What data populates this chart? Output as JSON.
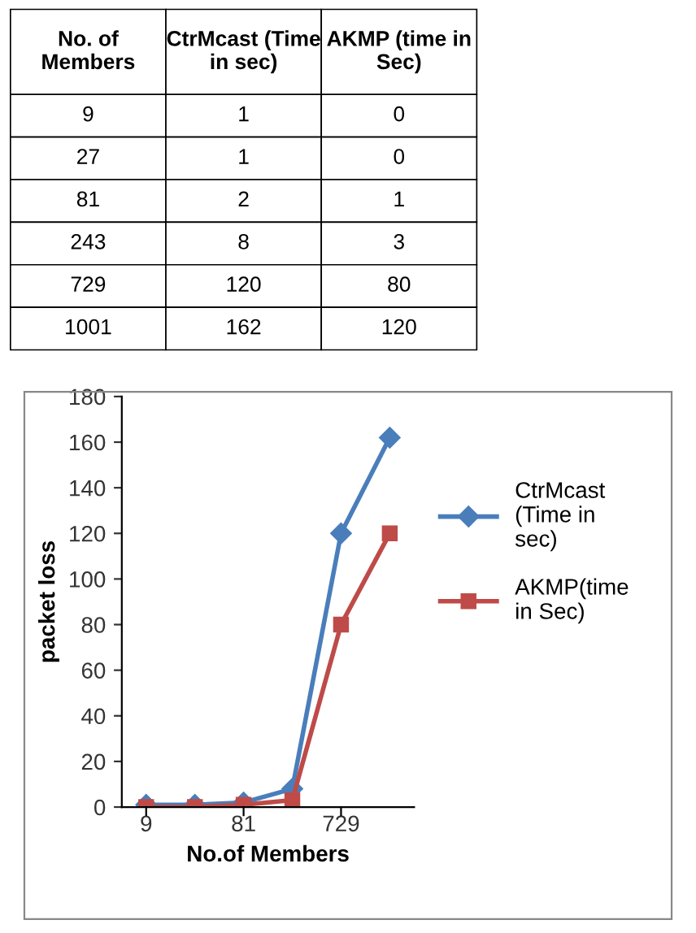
{
  "chart_data": [
    {
      "type": "other",
      "xlabel": "No. of Members",
      "categories": [
        "9",
        "27",
        "81",
        "243",
        "729",
        "1001"
      ],
      "series": [
        {
          "name": "CtrMcast (Time in sec)",
          "values": [
            1,
            1,
            2,
            8,
            120,
            162
          ]
        },
        {
          "name": "AKMP (time in Sec)",
          "values": [
            0,
            0,
            1,
            3,
            80,
            120
          ]
        }
      ],
      "data_labels": true
    },
    {
      "type": "line",
      "xlabel": "No.of Members",
      "ylabel": "packet loss",
      "categories": [
        "9",
        null,
        "81",
        null,
        "729",
        null
      ],
      "series": [
        {
          "name": "CtrMcast (Time in sec)",
          "color": "#4a7ebb",
          "marker": "diamond",
          "values": [
            1,
            1,
            2,
            8,
            120,
            162
          ]
        },
        {
          "name": "AKMP(time in Sec)",
          "color": "#be4b48",
          "marker": "square",
          "values": [
            0,
            0,
            1,
            3,
            80,
            120
          ]
        }
      ],
      "ylim": [
        0,
        180
      ],
      "yticks": [
        0,
        20,
        40,
        60,
        80,
        100,
        120,
        140,
        160,
        180
      ],
      "grid": false,
      "legend": "right"
    }
  ]
}
